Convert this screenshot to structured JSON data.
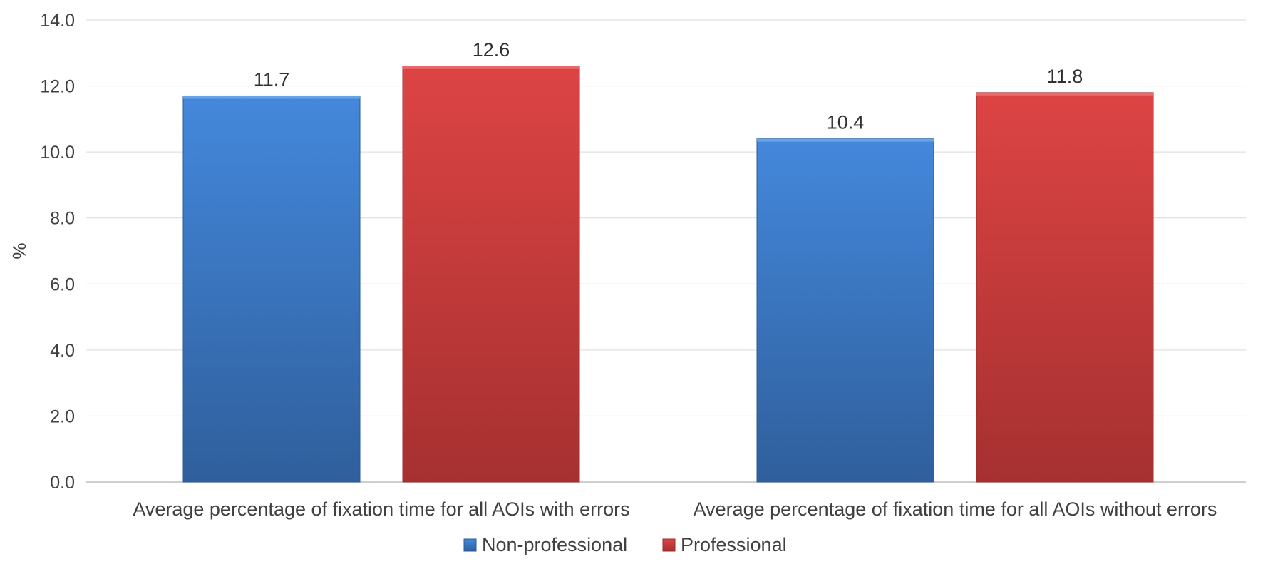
{
  "chart_data": {
    "type": "bar",
    "categories": [
      "Average percentage of fixation time for all  AOIs with errors",
      "Average percentage of fixation time for all AOIs without errors"
    ],
    "series": [
      {
        "name": "Non-professional",
        "color": "#3f82d6",
        "values": [
          11.7,
          10.4
        ]
      },
      {
        "name": "Professional",
        "color": "#d64040",
        "values": [
          12.6,
          11.8
        ]
      }
    ],
    "data_labels": [
      [
        "11.7",
        "10.4"
      ],
      [
        "12.6",
        "11.8"
      ]
    ],
    "ylabel": "%",
    "xlabel": "",
    "ylim": [
      0,
      14
    ],
    "yticks": [
      "0.0",
      "2.0",
      "4.0",
      "6.0",
      "8.0",
      "10.0",
      "12.0",
      "14.0"
    ],
    "grid": true,
    "legend": "bottom"
  }
}
